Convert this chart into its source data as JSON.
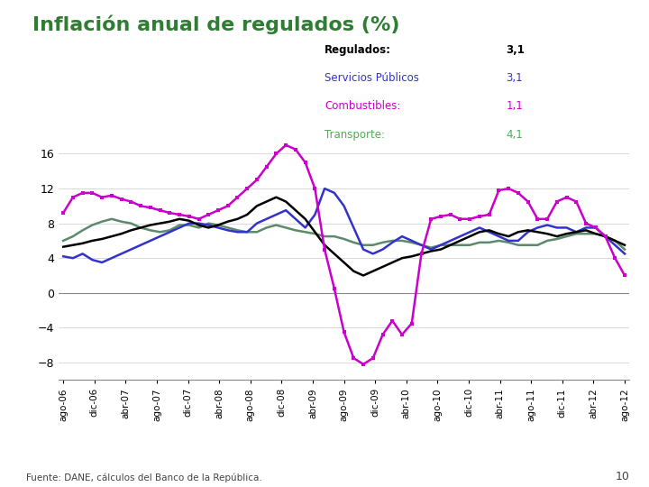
{
  "title": "Inflación anual de regulados (%)",
  "title_color": "#2e7d32",
  "title_fontsize": 16,
  "source_text": "Fuente: DANE, cálculos del Banco de la República.",
  "page_number": "10",
  "legend": {
    "Regulados:": {
      "value": "3,1",
      "color": "#000000",
      "bold": true
    },
    "Servicios Públicos": {
      "value": "3,1",
      "color": "#3333cc",
      "bold": false
    },
    "Combustibles:": {
      "value": "1,1",
      "color": "#cc00cc",
      "bold": false
    },
    "Transporte:": {
      "value": "4,1",
      "color": "#4caf50",
      "bold": false
    }
  },
  "yticks": [
    -8,
    -4,
    0,
    4,
    8,
    12,
    16
  ],
  "ylim": [
    -10,
    18
  ],
  "xtick_labels": [
    "ago-06",
    "dic-06",
    "abr-07",
    "ago-07",
    "dic-07",
    "abr-08",
    "ago-08",
    "dic-08",
    "abr-09",
    "ago-09",
    "dic-09",
    "abr-10",
    "ago-10",
    "dic-10",
    "abr-11",
    "ago-11",
    "dic-11",
    "abr-12",
    "ago-12"
  ],
  "series": {
    "regulados": {
      "color": "#000000",
      "linewidth": 1.8,
      "values": [
        5.3,
        5.5,
        5.7,
        6.0,
        6.2,
        6.5,
        6.8,
        7.2,
        7.5,
        7.8,
        8.0,
        8.2,
        8.5,
        8.3,
        7.8,
        7.5,
        7.8,
        8.2,
        8.5,
        9.0,
        10.0,
        10.5,
        11.0,
        10.5,
        9.5,
        8.5,
        7.0,
        5.5,
        4.5,
        3.5,
        2.5,
        2.0,
        2.5,
        3.0,
        3.5,
        4.0,
        4.2,
        4.5,
        4.8,
        5.0,
        5.5,
        6.0,
        6.5,
        7.0,
        7.2,
        6.8,
        6.5,
        7.0,
        7.2,
        7.0,
        6.8,
        6.5,
        6.8,
        7.0,
        7.2,
        6.8,
        6.5,
        6.0,
        5.5,
        3.1
      ]
    },
    "servicios_publicos": {
      "color": "#3333cc",
      "linewidth": 1.8,
      "values": [
        4.2,
        4.0,
        4.5,
        3.8,
        3.5,
        4.0,
        4.5,
        5.0,
        5.5,
        6.0,
        6.5,
        7.0,
        7.5,
        8.0,
        8.0,
        7.8,
        7.5,
        7.2,
        7.0,
        7.0,
        8.0,
        8.5,
        9.0,
        9.5,
        8.5,
        7.5,
        9.0,
        12.0,
        11.5,
        10.0,
        7.5,
        5.0,
        4.5,
        5.0,
        5.8,
        6.5,
        6.0,
        5.5,
        5.0,
        5.5,
        6.0,
        6.5,
        7.0,
        7.5,
        7.0,
        6.5,
        6.0,
        6.0,
        7.0,
        7.5,
        7.8,
        7.5,
        7.5,
        7.0,
        7.5,
        7.5,
        6.5,
        5.5,
        4.5,
        3.1
      ]
    },
    "combustibles": {
      "color": "#cc00cc",
      "linewidth": 1.8,
      "marker": "s",
      "markersize": 2.5,
      "values": [
        9.2,
        11.0,
        11.5,
        11.5,
        11.0,
        11.2,
        10.8,
        10.5,
        10.0,
        9.8,
        9.5,
        9.2,
        9.0,
        8.8,
        8.5,
        9.0,
        9.5,
        10.0,
        11.0,
        12.0,
        13.0,
        14.5,
        16.0,
        17.0,
        16.5,
        15.0,
        12.0,
        5.0,
        0.5,
        -4.5,
        -7.5,
        -8.2,
        -7.5,
        -4.8,
        -3.2,
        -4.8,
        -3.5,
        4.5,
        8.5,
        8.8,
        9.0,
        8.5,
        8.5,
        8.8,
        9.0,
        11.8,
        12.0,
        11.5,
        10.5,
        8.5,
        8.5,
        10.5,
        11.0,
        10.5,
        8.0,
        7.5,
        6.5,
        4.0,
        2.0,
        1.1
      ]
    },
    "transporte": {
      "color": "#5c8a6a",
      "linewidth": 1.8,
      "values": [
        6.0,
        6.5,
        7.2,
        7.8,
        8.2,
        8.5,
        8.2,
        8.0,
        7.5,
        7.2,
        7.0,
        7.2,
        7.8,
        7.8,
        7.5,
        8.0,
        7.8,
        7.5,
        7.2,
        7.0,
        7.0,
        7.5,
        7.8,
        7.5,
        7.2,
        7.0,
        6.8,
        6.5,
        6.5,
        6.2,
        5.8,
        5.5,
        5.5,
        5.8,
        6.0,
        6.0,
        5.8,
        5.5,
        5.2,
        5.5,
        5.5,
        5.5,
        5.5,
        5.8,
        5.8,
        6.0,
        5.8,
        5.5,
        5.5,
        5.5,
        6.0,
        6.2,
        6.5,
        6.8,
        6.8,
        6.8,
        6.5,
        6.0,
        5.0,
        4.1
      ]
    }
  },
  "background_color": "#ffffff"
}
